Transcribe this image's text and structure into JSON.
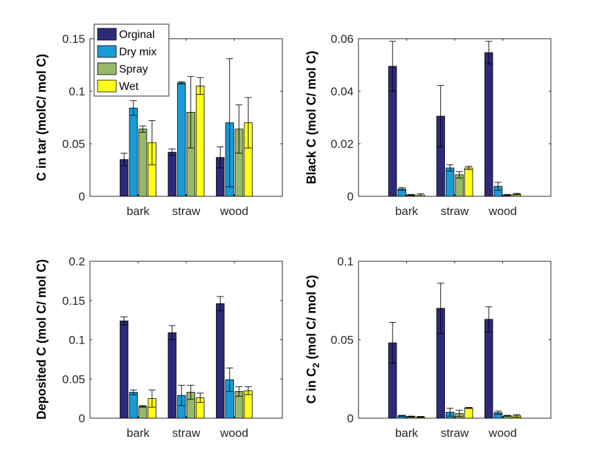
{
  "chart_data": [
    {
      "type": "bar",
      "ylabel": "C in tar (molC/ mol C)",
      "ylim": [
        0,
        0.15
      ],
      "yticks": [
        "0",
        "0.05",
        "0.1",
        "0.15"
      ],
      "categories": [
        "bark",
        "straw",
        "wood"
      ],
      "series": [
        {
          "name": "Orginal",
          "color": "#2d2a7a",
          "values": [
            0.035,
            0.042,
            0.037
          ],
          "err": [
            0.006,
            0.003,
            0.01
          ]
        },
        {
          "name": "Dry mix",
          "color": "#1a9bd6",
          "values": [
            0.084,
            0.108,
            0.07
          ],
          "err": [
            0.007,
            0.001,
            0.061
          ]
        },
        {
          "name": "Spray",
          "color": "#97b86a",
          "values": [
            0.064,
            0.08,
            0.064
          ],
          "err": [
            0.003,
            0.034,
            0.023
          ]
        },
        {
          "name": "Wet",
          "color": "#ffff1a",
          "values": [
            0.051,
            0.105,
            0.07
          ],
          "err": [
            0.021,
            0.008,
            0.024
          ]
        }
      ]
    },
    {
      "type": "bar",
      "ylabel": "Black C (mol C/ mol C)",
      "ylim": [
        0,
        0.06
      ],
      "yticks": [
        "0",
        "0.02",
        "0.04",
        "0.06"
      ],
      "categories": [
        "bark",
        "straw",
        "wood"
      ],
      "series": [
        {
          "name": "Orginal",
          "color": "#2d2a7a",
          "values": [
            0.0495,
            0.0305,
            0.0547
          ],
          "err": [
            0.0095,
            0.0117,
            0.0043
          ]
        },
        {
          "name": "Dry mix",
          "color": "#1a9bd6",
          "values": [
            0.0028,
            0.0108,
            0.0038
          ],
          "err": [
            0.0005,
            0.0012,
            0.0015
          ]
        },
        {
          "name": "Spray",
          "color": "#97b86a",
          "values": [
            0.0005,
            0.0082,
            0.0005
          ],
          "err": [
            0.0002,
            0.0012,
            0.0002
          ]
        },
        {
          "name": "Wet",
          "color": "#ffff1a",
          "values": [
            0.0005,
            0.0108,
            0.0008
          ],
          "err": [
            0.0005,
            0.0006,
            0.0003
          ]
        }
      ]
    },
    {
      "type": "bar",
      "ylabel": "Deposited C (mol C/ mol C)",
      "ylim": [
        0,
        0.2
      ],
      "yticks": [
        "0",
        "0.05",
        "0.1",
        "0.15",
        "0.2"
      ],
      "categories": [
        "bark",
        "straw",
        "wood"
      ],
      "series": [
        {
          "name": "Orginal",
          "color": "#2d2a7a",
          "values": [
            0.124,
            0.109,
            0.146
          ],
          "err": [
            0.005,
            0.009,
            0.009
          ]
        },
        {
          "name": "Dry mix",
          "color": "#1a9bd6",
          "values": [
            0.033,
            0.029,
            0.049
          ],
          "err": [
            0.003,
            0.013,
            0.015
          ]
        },
        {
          "name": "Spray",
          "color": "#97b86a",
          "values": [
            0.015,
            0.033,
            0.034
          ],
          "err": [
            0.001,
            0.009,
            0.006
          ]
        },
        {
          "name": "Wet",
          "color": "#ffff1a",
          "values": [
            0.025,
            0.026,
            0.035
          ],
          "err": [
            0.011,
            0.006,
            0.005
          ]
        }
      ]
    },
    {
      "type": "bar",
      "ylabel": "C in C",
      "ylabel_sub": "2",
      "ylabel_suffix": " (mol C/ mol C)",
      "ylim": [
        0,
        0.1
      ],
      "yticks": [
        "0",
        "0.05",
        "0.1"
      ],
      "categories": [
        "bark",
        "straw",
        "wood"
      ],
      "series": [
        {
          "name": "Orginal",
          "color": "#2d2a7a",
          "values": [
            0.048,
            0.07,
            0.063
          ],
          "err": [
            0.013,
            0.016,
            0.008
          ]
        },
        {
          "name": "Dry mix",
          "color": "#1a9bd6",
          "values": [
            0.0015,
            0.0038,
            0.0035
          ],
          "err": [
            0.0003,
            0.0025,
            0.001
          ]
        },
        {
          "name": "Spray",
          "color": "#97b86a",
          "values": [
            0.001,
            0.003,
            0.0015
          ],
          "err": [
            0.0003,
            0.002,
            0.0003
          ]
        },
        {
          "name": "Wet",
          "color": "#ffff1a",
          "values": [
            0.0008,
            0.0065,
            0.0015
          ],
          "err": [
            0.0003,
            0.0003,
            0.0008
          ]
        }
      ]
    }
  ],
  "legend": {
    "placement": "top-left",
    "entries": [
      "Orginal",
      "Dry mix",
      "Spray",
      "Wet"
    ]
  }
}
